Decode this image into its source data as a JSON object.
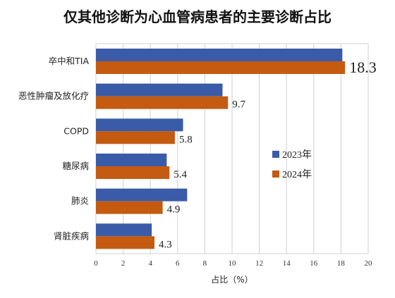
{
  "chart_data": {
    "type": "bar",
    "orientation": "horizontal",
    "title": "仅其他诊断为心血管病患者的主要诊断占比",
    "xlabel": "占比（%）",
    "xlim": [
      0,
      20
    ],
    "xticks": [
      0,
      2,
      4,
      6,
      8,
      10,
      12,
      14,
      16,
      18,
      20
    ],
    "categories": [
      "卒中和TIA",
      "恶性肿瘤及放化疗",
      "COPD",
      "糖尿病",
      "肺炎",
      "肾脏疾病"
    ],
    "series": [
      {
        "name": "2023年",
        "color": "#3a5ba8",
        "values": [
          18.1,
          9.3,
          6.4,
          5.2,
          6.7,
          4.1
        ]
      },
      {
        "name": "2024年",
        "color": "#c55a11",
        "values": [
          18.3,
          9.7,
          5.8,
          5.4,
          4.9,
          4.3
        ]
      }
    ],
    "data_labels": [
      "18.3",
      "9.7",
      "5.8",
      "5.4",
      "4.9",
      "4.3"
    ],
    "legend_position": "right",
    "grid": true
  }
}
